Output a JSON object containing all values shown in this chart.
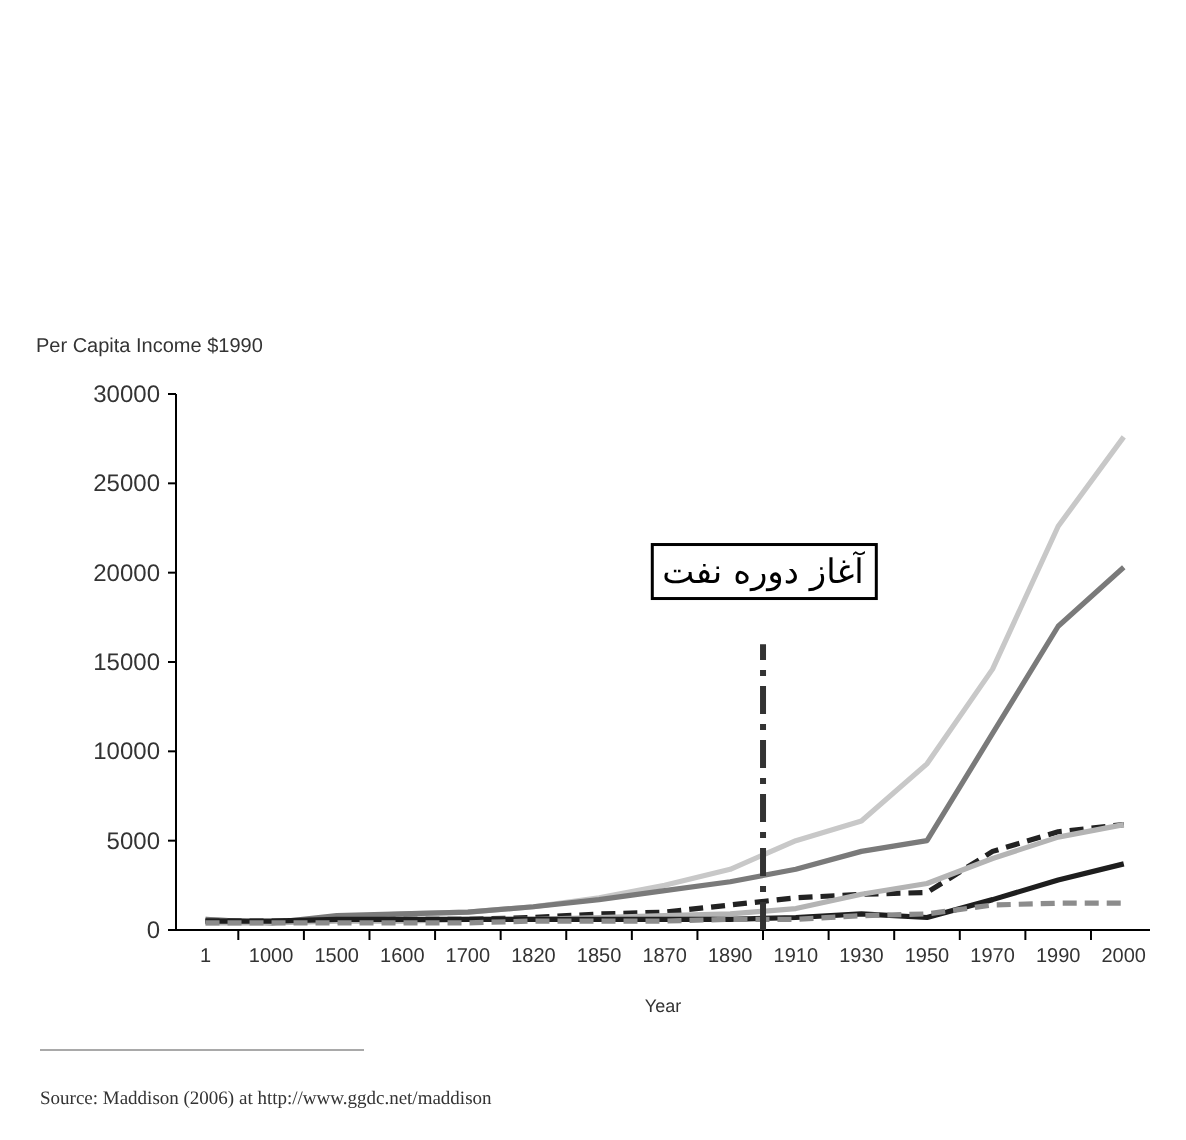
{
  "chart_data": {
    "type": "line",
    "ylabel": "Per Capita Income $1990",
    "xlabel": "Year",
    "categories": [
      "1",
      "1000",
      "1500",
      "1600",
      "1700",
      "1820",
      "1850",
      "1870",
      "1890",
      "1910",
      "1930",
      "1950",
      "1970",
      "1990",
      "2000"
    ],
    "series": [
      {
        "color": "#c8c8c8",
        "line_style": "solid",
        "values": [
          600,
          400,
          700,
          900,
          1000,
          1300,
          1800,
          2500,
          3400,
          5000,
          6100,
          9300,
          14600,
          22600,
          27600
        ]
      },
      {
        "color": "#7a7a7a",
        "line_style": "solid",
        "values": [
          600,
          400,
          800,
          900,
          1000,
          1300,
          1700,
          2200,
          2700,
          3400,
          4400,
          5000,
          11000,
          17000,
          20300
        ]
      },
      {
        "color": "#222222",
        "line_style": "dashed",
        "values": [
          500,
          500,
          500,
          600,
          600,
          700,
          900,
          1000,
          1400,
          1800,
          2000,
          2100,
          4400,
          5500,
          5900
        ]
      },
      {
        "color": "#b4b4b4",
        "line_style": "solid",
        "values": [
          400,
          400,
          500,
          500,
          600,
          600,
          700,
          800,
          900,
          1200,
          2000,
          2600,
          4000,
          5200,
          5900
        ]
      },
      {
        "color": "#1e1e1e",
        "line_style": "solid",
        "values": [
          500,
          500,
          600,
          600,
          600,
          600,
          600,
          600,
          600,
          700,
          900,
          700,
          1700,
          2800,
          3700
        ]
      },
      {
        "color": "#8c8c8c",
        "line_style": "dashed",
        "values": [
          400,
          400,
          400,
          400,
          400,
          500,
          500,
          500,
          600,
          600,
          800,
          900,
          1400,
          1500,
          1500
        ]
      }
    ],
    "ylim": [
      0,
      30000
    ],
    "yticks": [
      0,
      5000,
      10000,
      15000,
      20000,
      25000,
      30000
    ],
    "annotations": [
      "آغاز دوره نفت",
      "Source: Maddison (2006) at http://www.ggdc.net/maddison"
    ]
  }
}
